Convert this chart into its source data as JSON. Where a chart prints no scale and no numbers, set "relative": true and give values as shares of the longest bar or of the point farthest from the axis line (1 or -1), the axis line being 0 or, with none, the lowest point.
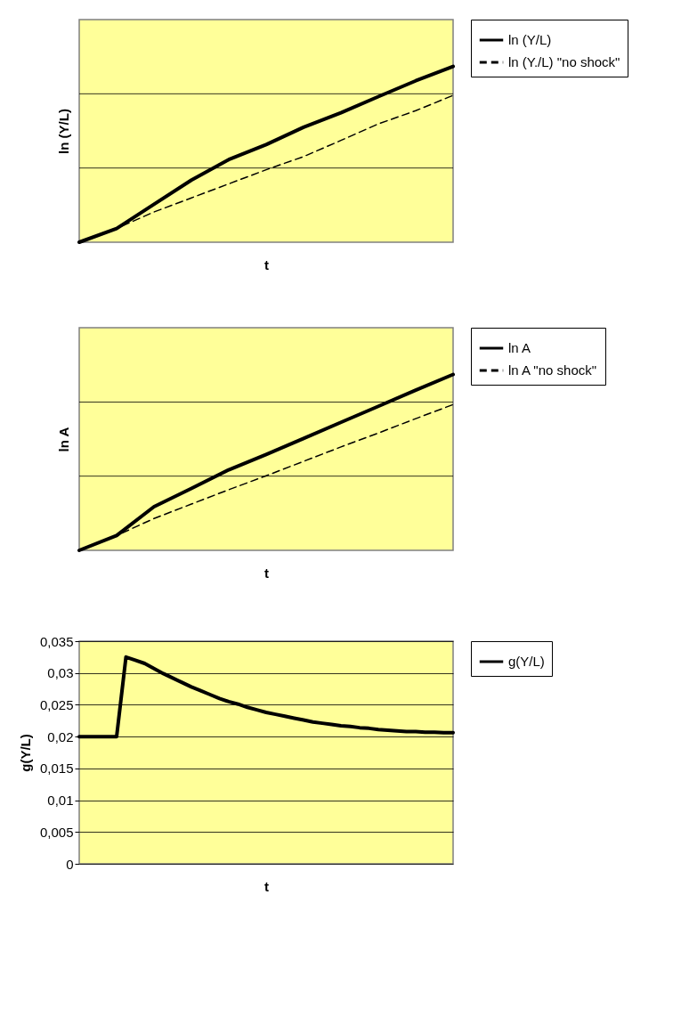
{
  "chart_data": [
    {
      "type": "line",
      "relative": true,
      "ylabel": "ln (Y/L)",
      "xlabel": "t",
      "legend": "right",
      "tick_labels": false,
      "ref_lines": [
        {
          "axis": "y",
          "value": 0.422,
          "color": "#000000"
        },
        {
          "axis": "y",
          "value": 0.844,
          "color": "#000000"
        }
      ],
      "categories": [
        null,
        null,
        null,
        null,
        null,
        null,
        null,
        null,
        null,
        null,
        null
      ],
      "series": [
        {
          "name": "ln (Y/L)",
          "color": "#000000",
          "line_style": "solid",
          "values": [
            0,
            0.078,
            0.216,
            0.353,
            0.47,
            0.555,
            0.654,
            0.736,
            0.828,
            0.918,
            1
          ]
        },
        {
          "name": "ln (Y./L) \"no shock\"",
          "color": "#000000",
          "line_style": "dashed",
          "values": [
            0,
            0.078,
            0.172,
            0.252,
            0.332,
            0.412,
            0.487,
            0.579,
            0.673,
            0.748,
            0.835
          ]
        }
      ]
    },
    {
      "type": "line",
      "relative": true,
      "ylabel": "ln A",
      "xlabel": "t",
      "legend": "right",
      "tick_labels": false,
      "ref_lines": [
        {
          "axis": "y",
          "value": 0.422,
          "color": "#000000"
        },
        {
          "axis": "y",
          "value": 0.843,
          "color": "#000000"
        }
      ],
      "categories": [
        null,
        null,
        null,
        null,
        null,
        null,
        null,
        null,
        null,
        null,
        null
      ],
      "series": [
        {
          "name": "ln A",
          "color": "#000000",
          "line_style": "solid",
          "values": [
            0,
            0.084,
            0.248,
            0.352,
            0.458,
            0.545,
            0.636,
            0.728,
            0.819,
            0.911,
            1
          ]
        },
        {
          "name": "ln A \"no shock\"",
          "color": "#000000",
          "line_style": "dashed",
          "values": [
            0,
            0.084,
            0.181,
            0.263,
            0.345,
            0.424,
            0.506,
            0.588,
            0.667,
            0.749,
            0.829
          ]
        }
      ]
    },
    {
      "type": "line",
      "ylabel": "g(Y/L)",
      "xlabel": "t",
      "grid": "y",
      "legend": "right",
      "tick_labels": "y",
      "ylim": [
        0,
        0.035
      ],
      "yticks": [
        0,
        {
          "value": 0.005,
          "label": "0,005"
        },
        {
          "value": 0.01,
          "label": "0,01"
        },
        {
          "value": 0.015,
          "label": "0,015"
        },
        {
          "value": 0.02,
          "label": "0,02"
        },
        {
          "value": 0.025,
          "label": "0,025"
        },
        {
          "value": 0.03,
          "label": "0,03"
        },
        {
          "value": 0.035,
          "label": "0,035"
        }
      ],
      "categories": [
        null,
        null,
        null,
        null,
        null,
        null,
        null,
        null,
        null,
        null,
        null,
        null,
        null,
        null,
        null,
        null,
        null,
        null,
        null,
        null,
        null,
        null,
        null,
        null,
        null,
        null,
        null,
        null,
        null,
        null,
        null,
        null,
        null,
        null,
        null,
        null,
        null,
        null,
        null,
        null,
        null
      ],
      "series": [
        {
          "name": "g(Y/L)",
          "color": "#000000",
          "line_style": "solid",
          "values": [
            0.02,
            0.02,
            0.02,
            0.02,
            0.02,
            0.0325,
            0.032,
            0.0315,
            0.0307,
            0.0299,
            0.0292,
            0.0285,
            0.0278,
            0.0272,
            0.0266,
            0.026,
            0.0255,
            0.0251,
            0.0246,
            0.0242,
            0.0238,
            0.0235,
            0.0232,
            0.0229,
            0.0226,
            0.0223,
            0.0221,
            0.0219,
            0.0217,
            0.0216,
            0.0214,
            0.0213,
            0.0211,
            0.021,
            0.0209,
            0.0208,
            0.0208,
            0.0207,
            0.0207,
            0.0206,
            0.0206
          ]
        }
      ]
    }
  ]
}
